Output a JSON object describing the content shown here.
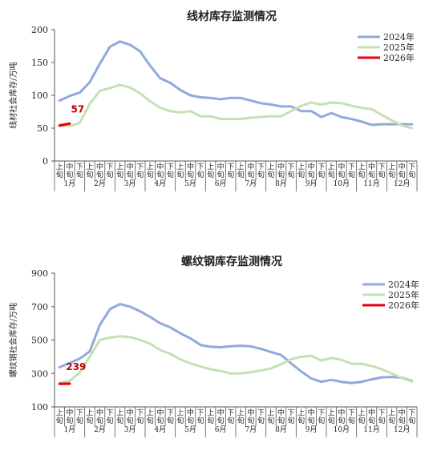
{
  "chart_data": [
    {
      "type": "line",
      "title": "线材库存监测情况",
      "ylabel": "线材社会库存/万吨",
      "ylim": [
        0,
        200
      ],
      "yticks": [
        0,
        50,
        100,
        150,
        200
      ],
      "months": [
        "1月",
        "2月",
        "3月",
        "4月",
        "5月",
        "6月",
        "7月",
        "8月",
        "9月",
        "10月",
        "11月",
        "12月"
      ],
      "periods": [
        "上旬",
        "中旬",
        "下旬"
      ],
      "legend_position": "top-right",
      "series": [
        {
          "name": "2024年",
          "color": "#8faadc",
          "values": [
            92,
            99,
            104,
            120,
            148,
            174,
            182,
            177,
            167,
            145,
            126,
            119,
            108,
            100,
            97,
            96,
            94,
            96,
            96,
            92,
            88,
            86,
            83,
            83,
            76,
            76,
            67,
            73,
            67,
            64,
            60,
            55,
            56,
            56,
            56,
            56
          ]
        },
        {
          "name": "2025年",
          "color": "#c5e0b4",
          "values": [
            54,
            53,
            58,
            87,
            107,
            111,
            116,
            112,
            103,
            91,
            81,
            76,
            74,
            76,
            68,
            68,
            64,
            64,
            64,
            66,
            67,
            68,
            68,
            76,
            84,
            89,
            86,
            89,
            88,
            84,
            81,
            79,
            70,
            62,
            54,
            50
          ]
        },
        {
          "name": "2026年",
          "color": "#e60012",
          "values": [
            54,
            57
          ]
        }
      ],
      "annotations": [
        {
          "text": "57"
        }
      ]
    },
    {
      "type": "line",
      "title": "螺纹钢库存监测情况",
      "ylabel": "螺纹钢社会库存/万吨",
      "ylim": [
        100,
        900
      ],
      "yticks": [
        100,
        300,
        500,
        700,
        900
      ],
      "months": [
        "1月",
        "2月",
        "3月",
        "4月",
        "5月",
        "6月",
        "7月",
        "8月",
        "9月",
        "10月",
        "11月",
        "12月"
      ],
      "periods": [
        "上旬",
        "中旬",
        "下旬"
      ],
      "legend_position": "top-right",
      "series": [
        {
          "name": "2024年",
          "color": "#8faadc",
          "values": [
            337,
            362,
            389,
            432,
            590,
            685,
            715,
            700,
            672,
            638,
            600,
            575,
            540,
            510,
            470,
            460,
            457,
            463,
            466,
            462,
            448,
            428,
            411,
            360,
            312,
            270,
            250,
            262,
            250,
            243,
            250,
            265,
            277,
            279,
            275,
            255
          ]
        },
        {
          "name": "2025年",
          "color": "#c5e0b4",
          "values": [
            243,
            255,
            305,
            400,
            500,
            515,
            522,
            518,
            500,
            478,
            440,
            418,
            385,
            360,
            342,
            325,
            315,
            300,
            300,
            307,
            318,
            330,
            355,
            385,
            400,
            405,
            378,
            392,
            382,
            358,
            358,
            345,
            325,
            300,
            272,
            251
          ]
        },
        {
          "name": "2026年",
          "color": "#e60012",
          "values": [
            238,
            239
          ]
        }
      ],
      "annotations": [
        {
          "text": "239"
        }
      ]
    }
  ]
}
